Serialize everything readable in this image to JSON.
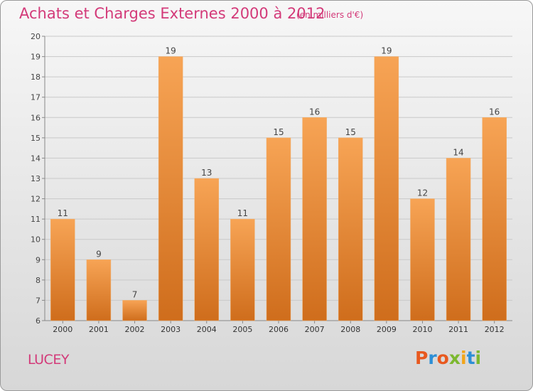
{
  "header": {
    "title": "Achats et Charges Externes 2000 à 2012",
    "subtitle": "(en milliers d'€)"
  },
  "footer": {
    "commune": "LUCEY",
    "logo_text": "Proxiti"
  },
  "colors": {
    "title": "#d33a79",
    "bar_top": "#f7a455",
    "bar_bottom": "#cf6d1c",
    "logo_letters": [
      "#e8591f",
      "#2d8fd6",
      "#e8591f",
      "#7cb82f",
      "#f2a51a",
      "#2d8fd6",
      "#7cb82f"
    ]
  },
  "chart_data": {
    "type": "bar",
    "categories": [
      "2000",
      "2001",
      "2002",
      "2003",
      "2004",
      "2005",
      "2006",
      "2007",
      "2008",
      "2009",
      "2010",
      "2011",
      "2012"
    ],
    "values": [
      11,
      9,
      7,
      19,
      13,
      11,
      15,
      16,
      15,
      19,
      12,
      14,
      16
    ],
    "ylim": [
      6,
      20
    ],
    "yticks": [
      6,
      7,
      8,
      9,
      10,
      11,
      12,
      13,
      14,
      15,
      16,
      17,
      18,
      19,
      20
    ],
    "grid": true
  }
}
